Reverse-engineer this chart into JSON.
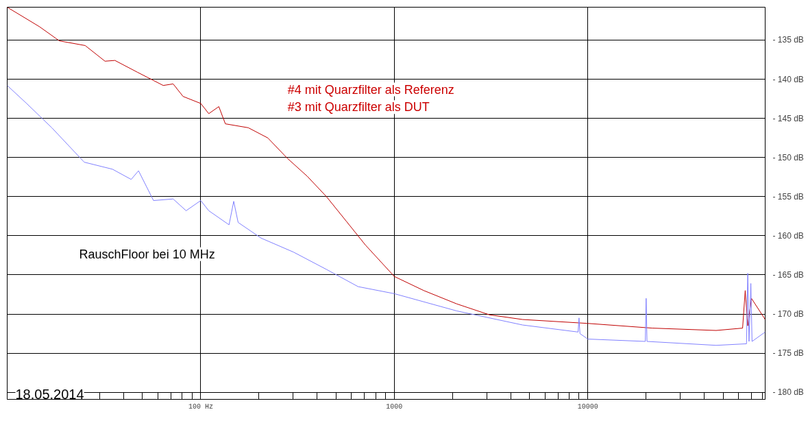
{
  "chart_data": {
    "type": "line",
    "series": [
      {
        "color": "#c00000",
        "x": [
          10,
          14.7,
          18.6,
          25.3,
          32,
          36,
          47,
          64,
          72,
          81,
          100,
          110,
          124,
          134,
          176,
          222,
          280,
          355,
          446,
          563,
          710,
          1000,
          1420,
          2100,
          3100,
          4600,
          10000,
          21500,
          46000,
          63000,
          65000,
          67000,
          70000,
          82400
        ],
        "values": [
          -130.8,
          -133.3,
          -135.1,
          -135.7,
          -137.7,
          -137.6,
          -139.1,
          -140.8,
          -140.6,
          -142.2,
          -143.1,
          -144.4,
          -143.5,
          -145.7,
          -146.2,
          -147.5,
          -150.1,
          -152.4,
          -155,
          -158.1,
          -161.2,
          -165.2,
          -167,
          -168.7,
          -170.1,
          -170.7,
          -171.2,
          -171.8,
          -172.1,
          -171.8,
          -167,
          -171.5,
          -168,
          -170.7
        ]
      },
      {
        "color": "#8080ff",
        "x": [
          10,
          12.6,
          17,
          25,
          35,
          43.7,
          47.7,
          57,
          72,
          84,
          100,
          110,
          140,
          148,
          156,
          205,
          302,
          446,
          650,
          1000,
          2100,
          4600,
          8900,
          9000,
          9100,
          10000,
          19800,
          20000,
          20200,
          46000,
          66000,
          67000,
          68000,
          69500,
          70500,
          82400
        ],
        "values": [
          -140.8,
          -143.1,
          -146.2,
          -150.6,
          -151.5,
          -152.8,
          -151.7,
          -155.5,
          -155.3,
          -156.8,
          -155.5,
          -156.8,
          -158.6,
          -155.6,
          -158.3,
          -160.3,
          -162.1,
          -164.3,
          -166.5,
          -167.4,
          -169.6,
          -171.4,
          -172.3,
          -170.5,
          -172.5,
          -173.2,
          -173.5,
          -168,
          -173.5,
          -174,
          -173.8,
          -164.8,
          -173.5,
          -166.1,
          -173.5,
          -172.3
        ]
      }
    ],
    "log": "x",
    "xlim": [
      10,
      82400
    ],
    "ylim": [
      -180.9,
      -130.8
    ],
    "xticks": [
      {
        "value": 20,
        "label": null
      },
      {
        "value": 30,
        "label": null
      },
      {
        "value": 40,
        "label": null
      },
      {
        "value": 50,
        "label": null
      },
      {
        "value": 60,
        "label": null
      },
      {
        "value": 70,
        "label": null
      },
      {
        "value": 80,
        "label": null
      },
      {
        "value": 90,
        "label": null
      },
      {
        "value": 100,
        "label": "100 Hz"
      },
      {
        "value": 200,
        "label": null
      },
      {
        "value": 300,
        "label": null
      },
      {
        "value": 400,
        "label": null
      },
      {
        "value": 500,
        "label": null
      },
      {
        "value": 600,
        "label": null
      },
      {
        "value": 700,
        "label": null
      },
      {
        "value": 800,
        "label": null
      },
      {
        "value": 900,
        "label": null
      },
      1000,
      {
        "value": 2000,
        "label": null
      },
      {
        "value": 3000,
        "label": null
      },
      {
        "value": 4000,
        "label": null
      },
      {
        "value": 5000,
        "label": null
      },
      {
        "value": 6000,
        "label": null
      },
      {
        "value": 7000,
        "label": null
      },
      {
        "value": 8000,
        "label": null
      },
      {
        "value": 9000,
        "label": null
      },
      10000,
      {
        "value": 20000,
        "label": null
      },
      {
        "value": 30000,
        "label": null
      },
      {
        "value": 40000,
        "label": null
      },
      {
        "value": 50000,
        "label": null
      },
      {
        "value": 60000,
        "label": null
      },
      {
        "value": 70000,
        "label": null
      },
      {
        "value": 80000,
        "label": null
      }
    ],
    "yticks": [
      {
        "value": -135,
        "label": "- 135 dB"
      },
      {
        "value": -140,
        "label": "- 140 dB"
      },
      {
        "value": -145,
        "label": "- 145 dB"
      },
      {
        "value": -150,
        "label": "- 150 dB"
      },
      {
        "value": -155,
        "label": "- 155 dB"
      },
      {
        "value": -160,
        "label": "- 160 dB"
      },
      {
        "value": -165,
        "label": "- 165 dB"
      },
      {
        "value": -170,
        "label": "- 170 dB"
      },
      {
        "value": -175,
        "label": "- 175 dB"
      },
      {
        "value": -180,
        "label": "- 180 dB"
      }
    ],
    "grid": true,
    "annotations": [
      "#4 mit Quarzfilter als Referenz",
      "#3 mit Quarzfilter als DUT",
      "RauschFloor bei 10 MHz",
      "18.05.2014"
    ]
  }
}
